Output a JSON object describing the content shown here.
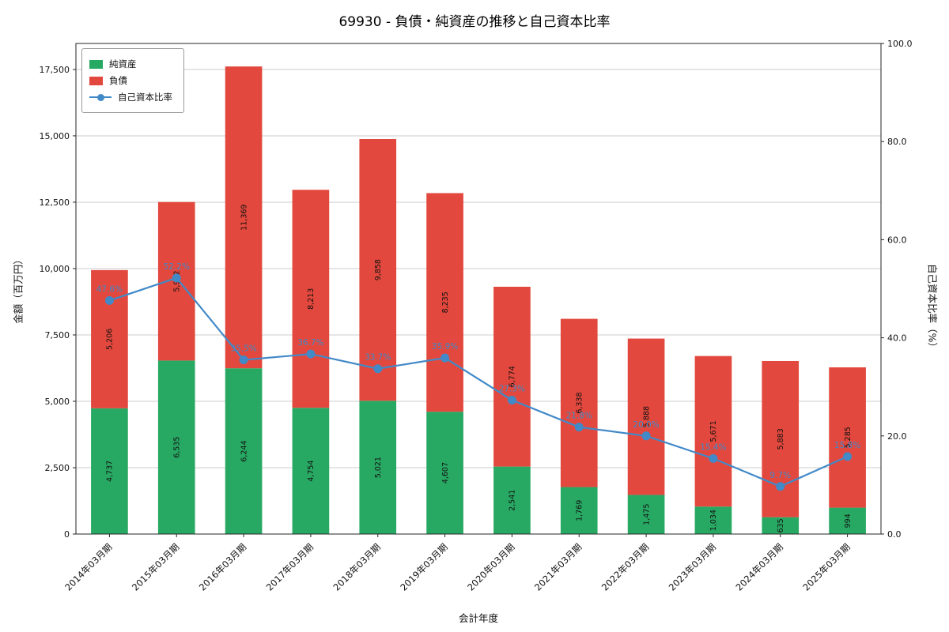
{
  "title": "69930 - 負債・純資産の推移と自己資本比率",
  "chart_data": {
    "type": "bar",
    "stacked": true,
    "title": "69930 - 負債・純資産の推移と自己資本比率",
    "xlabel": "会計年度",
    "ylabel_left": "金額（百万円）",
    "ylabel_right": "自己資本比率（%）",
    "categories": [
      "2014年03月期",
      "2015年03月期",
      "2016年03月期",
      "2017年03月期",
      "2018年03月期",
      "2019年03月期",
      "2020年03月期",
      "2021年03月期",
      "2022年03月期",
      "2023年03月期",
      "2024年03月期",
      "2025年03月期"
    ],
    "series": [
      {
        "name": "純資産",
        "type": "bar",
        "axis": "left",
        "color": "#28a963",
        "values": [
          4737,
          6535,
          6244,
          4754,
          5021,
          4607,
          2541,
          1769,
          1475,
          1034,
          635,
          994
        ],
        "labels": [
          "4,737",
          "6,535",
          "6,244",
          "4,754",
          "5,021",
          "4,607",
          "2,541",
          "1,769",
          "1,475",
          "1,034",
          "635",
          "994"
        ]
      },
      {
        "name": "負債",
        "type": "bar",
        "axis": "left",
        "color": "#e2483d",
        "values": [
          5206,
          5972,
          11369,
          8213,
          9858,
          8235,
          6774,
          6338,
          5888,
          5671,
          5883,
          5285
        ],
        "labels": [
          "5,206",
          "5,972",
          "11,369",
          "8,213",
          "9,858",
          "8,235",
          "6,774",
          "6,338",
          "5,888",
          "5,671",
          "5,883",
          "5,285"
        ]
      },
      {
        "name": "自己資本比率",
        "type": "line",
        "axis": "right",
        "color": "#4289c8",
        "values": [
          47.6,
          52.2,
          35.5,
          36.7,
          33.7,
          35.9,
          27.3,
          21.8,
          20.0,
          15.4,
          9.7,
          15.8
        ],
        "labels": [
          "47.6%",
          "52.2%",
          "35.5%",
          "36.7%",
          "33.7%",
          "35.9%",
          "27.3%",
          "21.8%",
          "20.0%",
          "15.4%",
          "9.7%",
          "15.8%"
        ]
      }
    ],
    "ylim_left": [
      0,
      18480
    ],
    "ylim_right": [
      0,
      100
    ],
    "left_ticks": {
      "values": [
        0,
        2500,
        5000,
        7500,
        10000,
        12500,
        15000,
        17500
      ],
      "labels": [
        "0",
        "2,500",
        "5,000",
        "7,500",
        "10,000",
        "12,500",
        "15,000",
        "17,500"
      ]
    },
    "right_ticks": {
      "values": [
        0,
        20,
        40,
        60,
        80,
        100
      ],
      "labels": [
        "0.0",
        "20.0",
        "40.0",
        "60.0",
        "80.0",
        "100.0"
      ]
    },
    "grid": true,
    "legend_position": "upper left"
  },
  "colors": {
    "grid": "#cccccc",
    "spine": "#262626",
    "text": "#111111",
    "bar_label": "#111111"
  }
}
